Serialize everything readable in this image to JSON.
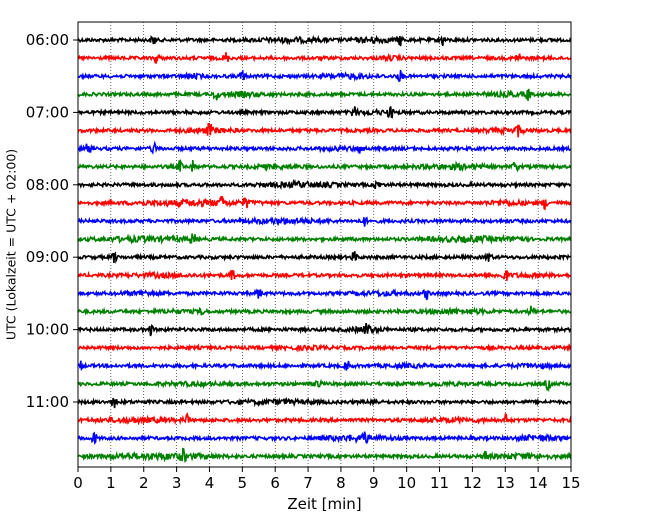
{
  "chart_data": {
    "type": "line",
    "title": "",
    "xlabel": "Zeit  [min]",
    "ylabel": "UTC (Lokalzeit = UTC + 02:00)",
    "xlim": [
      0,
      15
    ],
    "xticks": [
      "0",
      "1",
      "2",
      "3",
      "4",
      "5",
      "6",
      "7",
      "8",
      "9",
      "10",
      "11",
      "12",
      "13",
      "14",
      "15"
    ],
    "yticks": [
      {
        "label": "06:00",
        "row": 0
      },
      {
        "label": "07:00",
        "row": 4
      },
      {
        "label": "08:00",
        "row": 8
      },
      {
        "label": "09:00",
        "row": 12
      },
      {
        "label": "10:00",
        "row": 16
      },
      {
        "label": "11:00",
        "row": 20
      }
    ],
    "trace_interval_minutes": 15,
    "trace_count": 24,
    "start_time": "06:00",
    "color_cycle": [
      "#000000",
      "#ff0000",
      "#0000ff",
      "#008000"
    ],
    "grid": "vertical dotted",
    "traces": [
      {
        "start": "06:00",
        "color": "#000000",
        "spikes": [
          2.3,
          9.8,
          11.1
        ],
        "bursts": [
          [
            5,
            8,
            0.5
          ],
          [
            8,
            10,
            0.6
          ]
        ]
      },
      {
        "start": "06:15",
        "color": "#ff0000",
        "spikes": [
          2.4,
          4.5,
          13.4
        ],
        "bursts": [
          [
            9,
            10,
            0.4
          ]
        ]
      },
      {
        "start": "06:30",
        "color": "#0000ff",
        "spikes": [
          5.0,
          9.8
        ],
        "bursts": [
          [
            3,
            4,
            0.5
          ],
          [
            7,
            9.5,
            0.5
          ]
        ]
      },
      {
        "start": "06:45",
        "color": "#008000",
        "spikes": [
          4.2,
          13.7
        ],
        "bursts": [
          [
            4,
            6,
            0.5
          ],
          [
            12,
            14,
            0.4
          ]
        ]
      },
      {
        "start": "07:00",
        "color": "#000000",
        "spikes": [
          8.4,
          9.5
        ],
        "bursts": [
          [
            8,
            10,
            0.4
          ]
        ]
      },
      {
        "start": "07:15",
        "color": "#ff0000",
        "spikes": [
          4.0,
          13.4
        ],
        "bursts": [
          [
            3,
            5,
            0.6
          ],
          [
            12,
            14,
            0.4
          ]
        ]
      },
      {
        "start": "07:30",
        "color": "#0000ff",
        "spikes": [
          0.3,
          2.3,
          8.6
        ],
        "bursts": [
          [
            7,
            9,
            0.3
          ]
        ]
      },
      {
        "start": "07:45",
        "color": "#008000",
        "spikes": [
          3.1,
          3.5,
          13.3
        ],
        "bursts": [
          [
            5,
            7,
            0.4
          ],
          [
            10,
            13,
            0.6
          ]
        ]
      },
      {
        "start": "08:00",
        "color": "#000000",
        "spikes": [
          9.1
        ],
        "bursts": [
          [
            5,
            8.5,
            0.6
          ]
        ]
      },
      {
        "start": "08:15",
        "color": "#ff0000",
        "spikes": [
          4.4,
          5.1,
          14.2
        ],
        "bursts": [
          [
            1,
            6,
            0.7
          ],
          [
            12,
            14,
            0.5
          ]
        ]
      },
      {
        "start": "08:30",
        "color": "#0000ff",
        "spikes": [
          8.7
        ],
        "bursts": [
          [
            4.5,
            8,
            0.6
          ]
        ]
      },
      {
        "start": "08:45",
        "color": "#008000",
        "spikes": [
          3.5,
          13.4
        ],
        "bursts": [
          [
            0,
            4,
            0.6
          ],
          [
            10,
            14,
            0.6
          ]
        ]
      },
      {
        "start": "09:00",
        "color": "#000000",
        "spikes": [
          1.1,
          8.4,
          12.5
        ],
        "bursts": []
      },
      {
        "start": "09:15",
        "color": "#ff0000",
        "spikes": [
          4.7,
          13.0
        ],
        "bursts": [
          [
            1,
            4,
            0.4
          ],
          [
            12,
            15,
            0.3
          ]
        ]
      },
      {
        "start": "09:30",
        "color": "#0000ff",
        "spikes": [
          5.5,
          10.6
        ],
        "bursts": [
          [
            1,
            3,
            0.4
          ],
          [
            8,
            10.5,
            0.4
          ]
        ]
      },
      {
        "start": "09:45",
        "color": "#008000",
        "spikes": [
          3.8,
          13.8
        ],
        "bursts": [
          [
            2,
            4,
            0.3
          ],
          [
            10,
            13,
            0.5
          ]
        ]
      },
      {
        "start": "10:00",
        "color": "#000000",
        "spikes": [
          2.2,
          8.8
        ],
        "bursts": [
          [
            8,
            9.5,
            0.6
          ]
        ]
      },
      {
        "start": "10:15",
        "color": "#ff0000",
        "spikes": [],
        "bursts": [
          [
            6,
            8,
            0.3
          ]
        ]
      },
      {
        "start": "10:30",
        "color": "#0000ff",
        "spikes": [
          0.05,
          8.2
        ],
        "bursts": [
          [
            9,
            11,
            0.3
          ],
          [
            13,
            15,
            0.4
          ]
        ]
      },
      {
        "start": "10:45",
        "color": "#008000",
        "spikes": [
          7.3,
          14.3
        ],
        "bursts": [
          [
            2,
            5,
            0.3
          ],
          [
            10,
            12,
            0.3
          ]
        ]
      },
      {
        "start": "11:00",
        "color": "#000000",
        "spikes": [
          1.1,
          9.0
        ],
        "bursts": [
          [
            4,
            8,
            0.4
          ]
        ]
      },
      {
        "start": "11:15",
        "color": "#ff0000",
        "spikes": [
          3.3,
          13.0
        ],
        "bursts": [
          [
            0,
            3.5,
            0.5
          ],
          [
            10,
            13,
            0.4
          ]
        ]
      },
      {
        "start": "11:30",
        "color": "#0000ff",
        "spikes": [
          0.5,
          8.7
        ],
        "bursts": [
          [
            7,
            10,
            0.7
          ],
          [
            13,
            15,
            0.7
          ]
        ]
      },
      {
        "start": "11:45",
        "color": "#008000",
        "spikes": [
          3.2,
          12.4
        ],
        "bursts": [
          [
            0,
            5,
            0.7
          ],
          [
            12,
            15,
            0.5
          ]
        ]
      }
    ]
  }
}
